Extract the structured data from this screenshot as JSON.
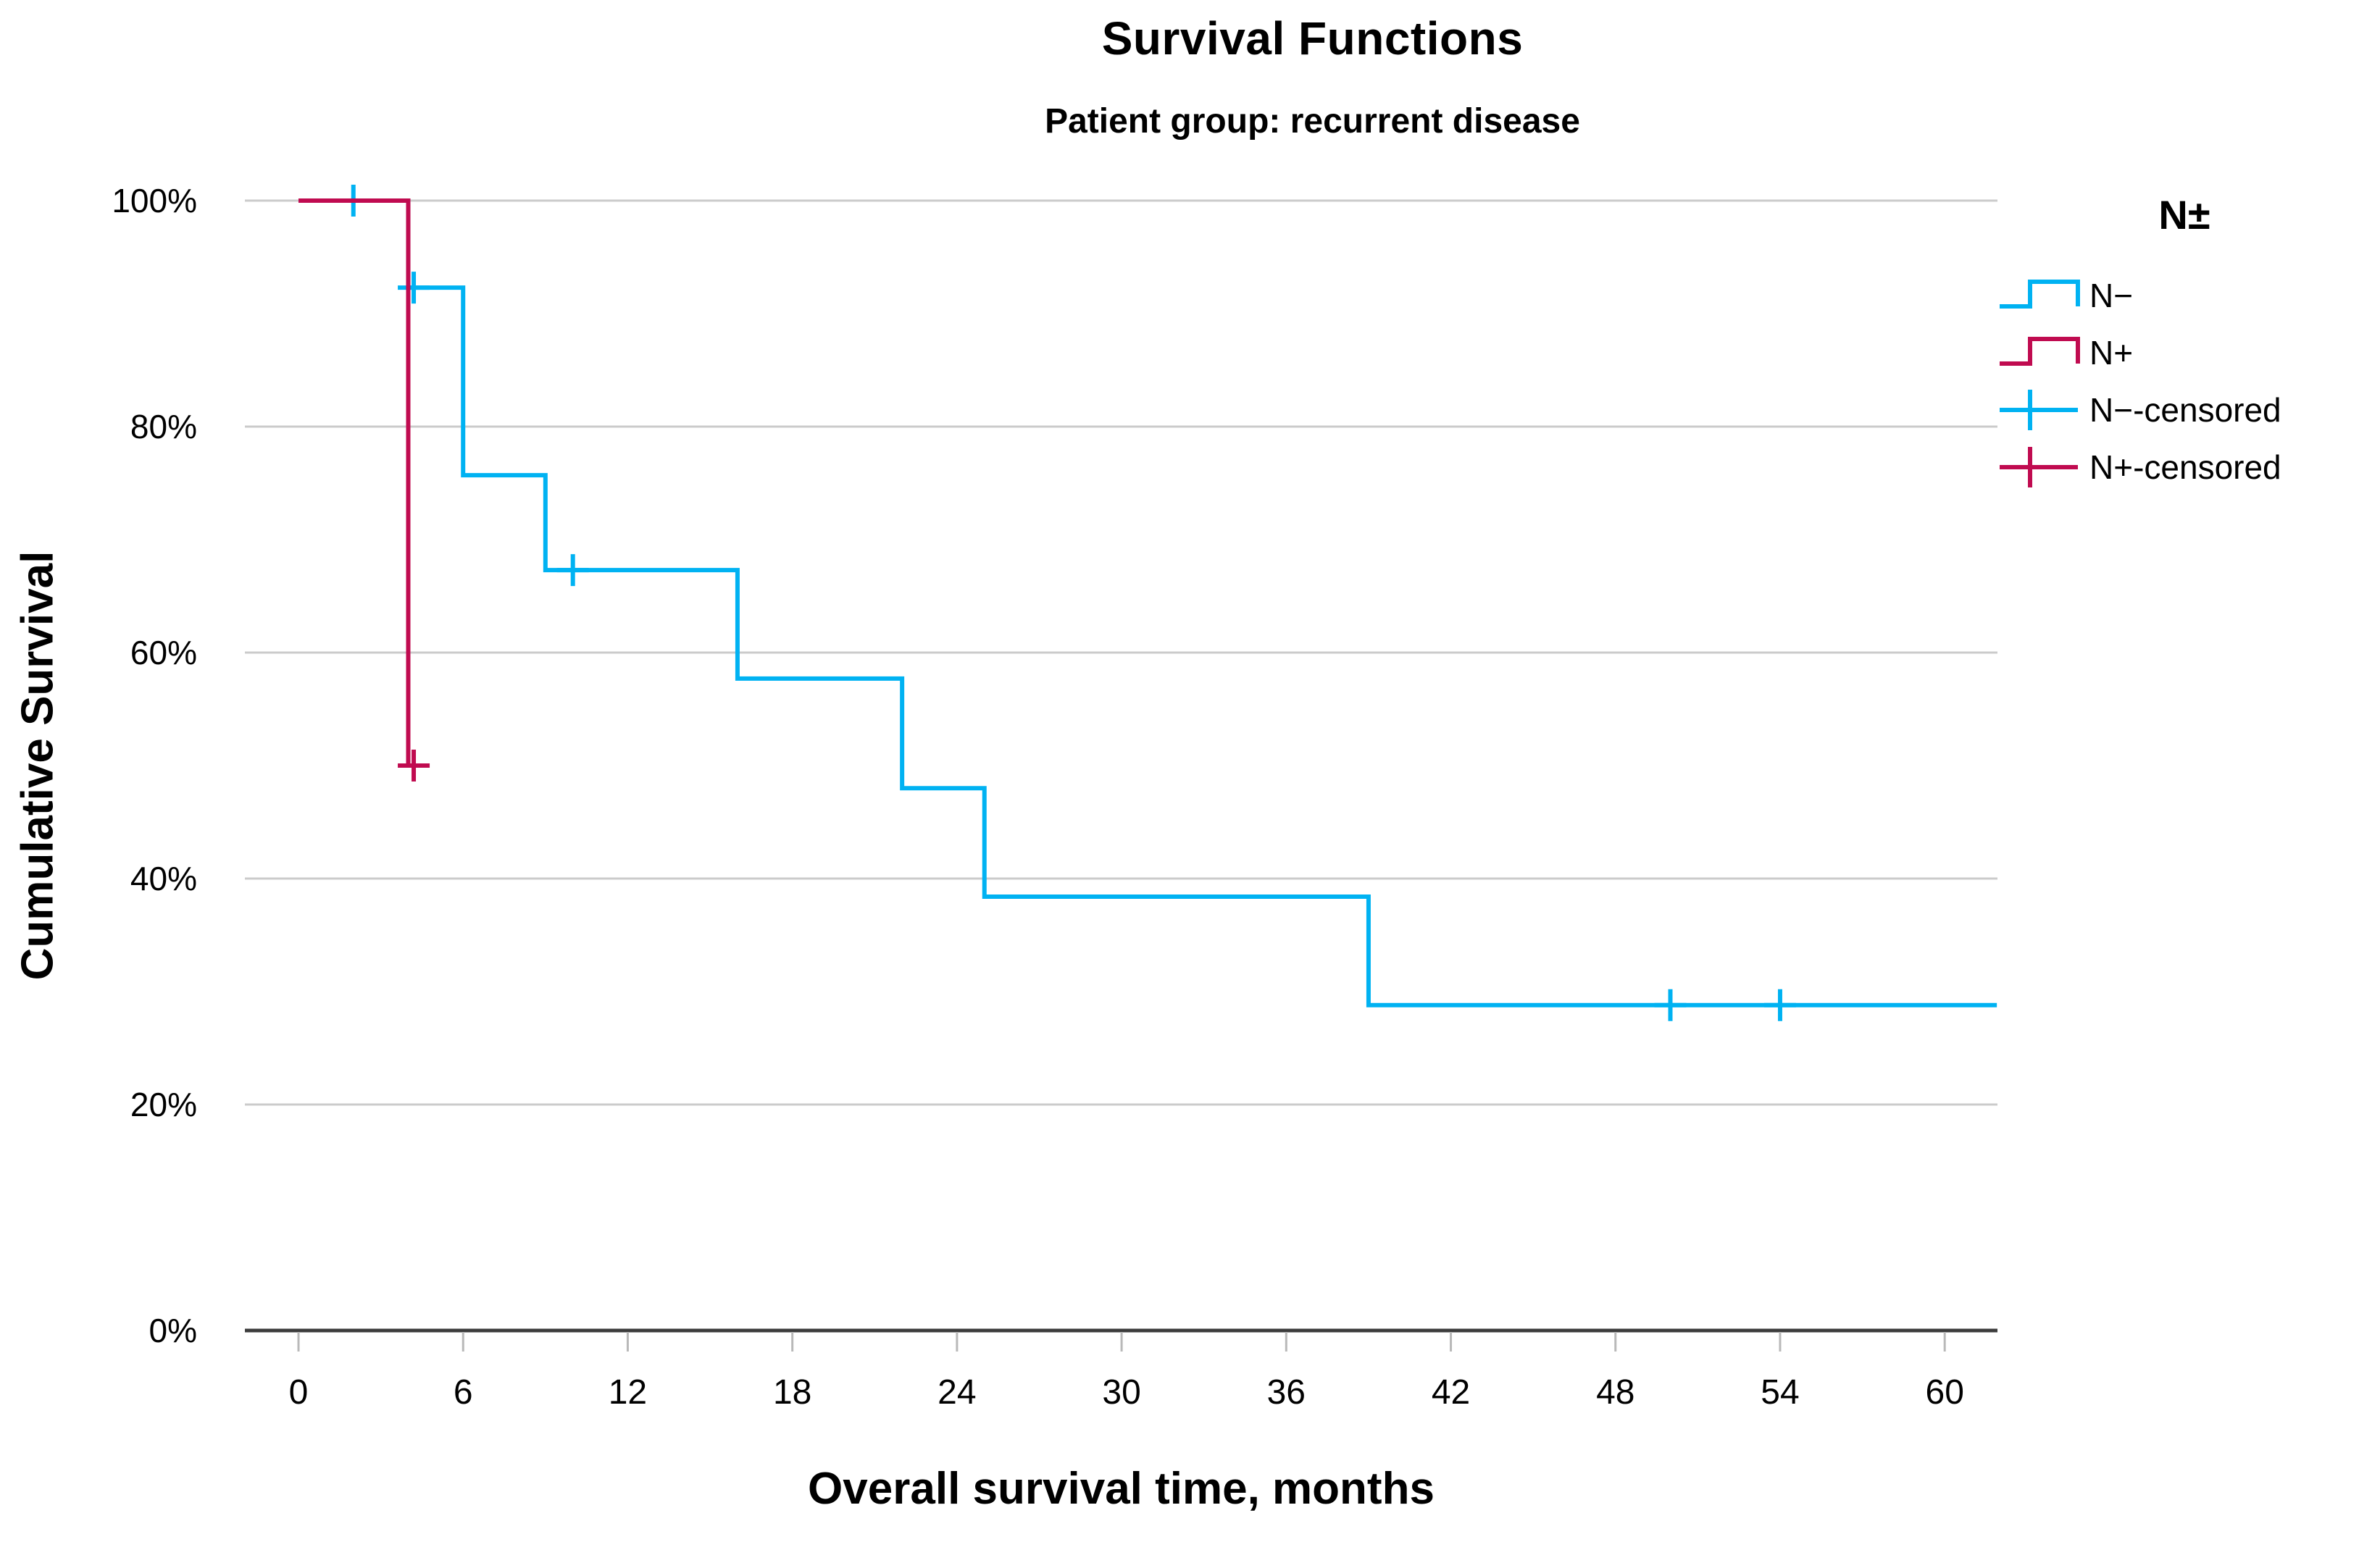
{
  "title": "Survival Functions",
  "subtitle": "Patient group: recurrent disease",
  "x_axis": {
    "title": "Overall survival time, months",
    "ticks": [
      {
        "label": "0",
        "value": 0
      },
      {
        "label": "6",
        "value": 6
      },
      {
        "label": "12",
        "value": 12
      },
      {
        "label": "18",
        "value": 18
      },
      {
        "label": "24",
        "value": 24
      },
      {
        "label": "30",
        "value": 30
      },
      {
        "label": "36",
        "value": 36
      },
      {
        "label": "42",
        "value": 42
      },
      {
        "label": "48",
        "value": 48
      },
      {
        "label": "54",
        "value": 54
      },
      {
        "label": "60",
        "value": 60
      }
    ]
  },
  "y_axis": {
    "title": "Cumulative Survival",
    "ticks": [
      {
        "label": "100%",
        "value": 100
      },
      {
        "label": "80%",
        "value": 80
      },
      {
        "label": "60%",
        "value": 60
      },
      {
        "label": "40%",
        "value": 40
      },
      {
        "label": "20%",
        "value": 20
      },
      {
        "label": "0%",
        "value": 0
      }
    ]
  },
  "legend": {
    "title": "N±",
    "entries": [
      {
        "label": "N−",
        "type": "step-line",
        "color": "#00B2F2"
      },
      {
        "label": "N+",
        "type": "step-line",
        "color": "#C00B50"
      },
      {
        "label": "N−-censored",
        "type": "censor-mark",
        "color": "#00B2F2"
      },
      {
        "label": "N+-censored",
        "type": "censor-mark",
        "color": "#C00B50"
      }
    ]
  },
  "colors": {
    "n_minus": "#00B2F2",
    "n_plus": "#C00B50",
    "gridline": "#cbcbcb",
    "axis_line": "#3c3c3c",
    "tick_mark": "#b9b9b9",
    "text": "#000000"
  },
  "chart_data": {
    "type": "line",
    "subtype": "kaplan-meier-step",
    "title": "Survival Functions",
    "subtitle": "Patient group: recurrent disease",
    "xlabel": "Overall survival time, months",
    "ylabel": "Cumulative Survival",
    "xlim": [
      -2,
      62
    ],
    "ylim_percent": [
      0,
      100
    ],
    "grid": "horizontal",
    "legend_position": "top-right",
    "series": [
      {
        "name": "N−",
        "color": "#00B2F2",
        "steps_month_percent": [
          [
            0,
            100
          ],
          [
            4,
            100
          ],
          [
            4,
            92.3
          ],
          [
            6,
            92.3
          ],
          [
            6,
            75.7
          ],
          [
            9,
            75.7
          ],
          [
            9,
            67.3
          ],
          [
            16,
            67.3
          ],
          [
            16,
            57.7
          ],
          [
            22,
            57.7
          ],
          [
            22,
            48.0
          ],
          [
            25,
            48.0
          ],
          [
            25,
            38.4
          ],
          [
            39,
            38.4
          ],
          [
            39,
            28.8
          ],
          [
            61.9,
            28.8
          ]
        ],
        "censored_month_percent": [
          [
            2,
            100
          ],
          [
            4.2,
            92.3
          ],
          [
            10,
            67.3
          ],
          [
            50,
            28.8
          ],
          [
            54,
            28.8
          ]
        ]
      },
      {
        "name": "N+",
        "color": "#C00B50",
        "steps_month_percent": [
          [
            0,
            100
          ],
          [
            4,
            100
          ],
          [
            4,
            50
          ]
        ],
        "censored_month_percent": [
          [
            4.2,
            50
          ]
        ]
      }
    ]
  }
}
